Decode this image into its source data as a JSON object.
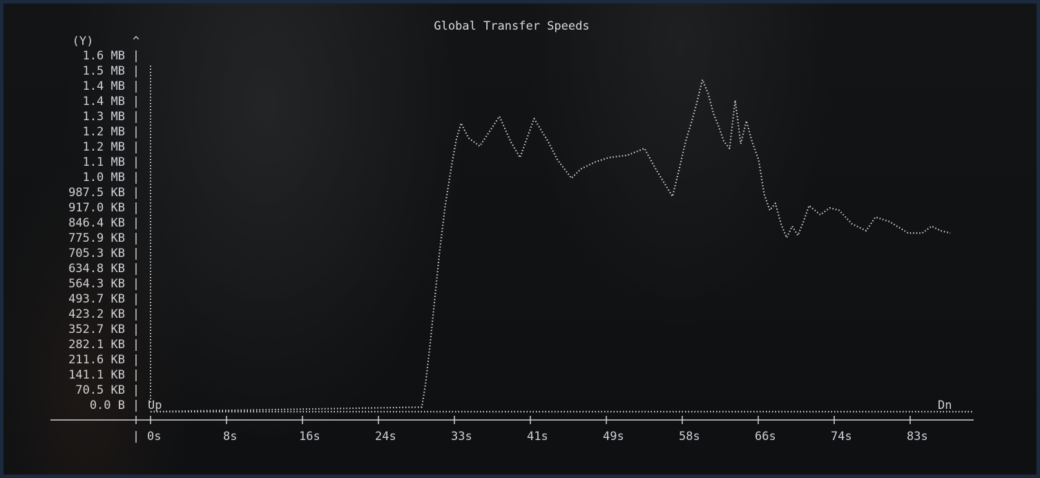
{
  "chart_data": {
    "type": "line",
    "title": "Global Transfer Speeds",
    "ylabel": "(Y)",
    "y_arrow": "^",
    "y_tick_labels": [
      "1.6 MB",
      "1.5 MB",
      "1.4 MB",
      "1.4 MB",
      "1.3 MB",
      "1.2 MB",
      "1.2 MB",
      "1.1 MB",
      "1.0 MB",
      "987.5 KB",
      "917.0 KB",
      "846.4 KB",
      "775.9 KB",
      "705.3 KB",
      "634.8 KB",
      "564.3 KB",
      "493.7 KB",
      "423.2 KB",
      "352.7 KB",
      "282.1 KB",
      "211.6 KB",
      "141.1 KB",
      "70.5 KB",
      "0.0 B"
    ],
    "x_tick_labels": [
      "0s",
      "8s",
      "16s",
      "24s",
      "33s",
      "41s",
      "49s",
      "58s",
      "66s",
      "74s",
      "83s"
    ],
    "ylim_kb": [
      0,
      1620
    ],
    "xlim_s": [
      0,
      88
    ],
    "series": [
      {
        "name": "Up",
        "x": [
          0,
          88
        ],
        "y": [
          0,
          0
        ]
      },
      {
        "name": "Dn",
        "x": [
          0,
          29.0,
          29.4,
          29.9,
          30.4,
          30.9,
          31.5,
          32.2,
          32.7,
          33.2,
          34.0,
          35.2,
          36.5,
          37.3,
          38.5,
          39.5,
          41.0,
          42.5,
          43.5,
          45.0,
          46.0,
          47.5,
          49.0,
          51.0,
          52.8,
          54.0,
          55.8,
          56.4,
          57.2,
          57.8,
          58.4,
          59.0,
          59.6,
          60.2,
          60.7,
          61.3,
          61.9,
          62.5,
          63.1,
          63.7,
          64.3,
          65.0,
          65.6,
          66.2,
          66.8,
          67.4,
          68.0,
          68.6,
          69.2,
          69.8,
          70.4,
          71.0,
          71.6,
          72.6,
          73.6,
          75.0,
          76.5,
          77.5,
          79.0,
          81.0,
          82.5,
          83.5,
          84.5,
          85.5
        ],
        "y": [
          0,
          20,
          120,
          300,
          500,
          700,
          900,
          1080,
          1190,
          1260,
          1195,
          1160,
          1240,
          1290,
          1180,
          1110,
          1280,
          1180,
          1100,
          1020,
          1060,
          1090,
          1110,
          1120,
          1150,
          1060,
          940,
          1040,
          1180,
          1260,
          1350,
          1450,
          1390,
          1300,
          1250,
          1180,
          1150,
          1360,
          1170,
          1270,
          1180,
          1100,
          950,
          880,
          910,
          820,
          760,
          810,
          770,
          830,
          900,
          880,
          860,
          890,
          880,
          820,
          790,
          850,
          830,
          780,
          780,
          810,
          790,
          780
        ]
      }
    ],
    "grid": false,
    "legend": "inline"
  }
}
